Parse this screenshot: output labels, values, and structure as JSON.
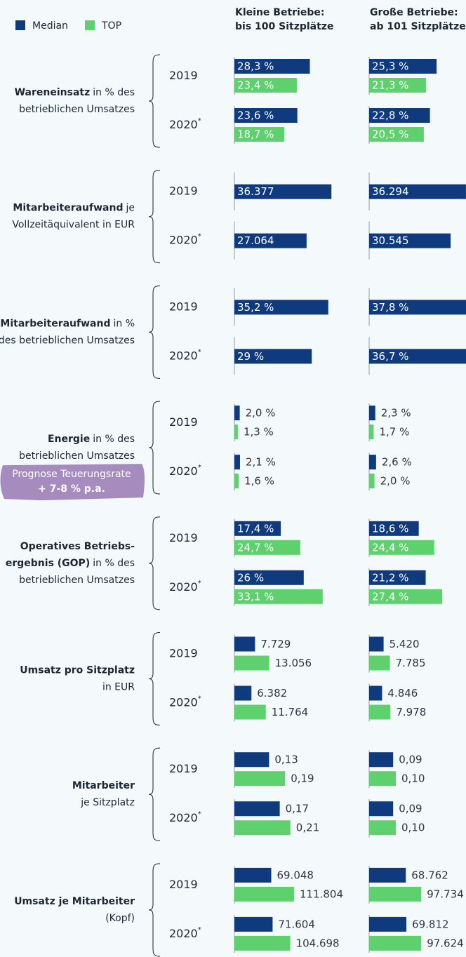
{
  "legend": [
    {
      "name": "Median",
      "color": "#0f3a7d"
    },
    {
      "name": "TOP",
      "color": "#5ed16e"
    }
  ],
  "columns": [
    {
      "title": [
        "Kleine Betriebe:",
        "bis 100 Sitzplätze"
      ]
    },
    {
      "title": [
        "Große Betriebe:",
        "ab 101 Sitzplätze"
      ]
    }
  ],
  "years": [
    {
      "label": "2019"
    },
    {
      "label": "2020",
      "note": "*"
    }
  ],
  "sections": [
    {
      "label": [
        [
          {
            "text": "Wareneinsatz",
            "bold": true
          },
          {
            "text": "in % des"
          }
        ],
        [
          {
            "text": "betrieblichen Umsatzes"
          }
        ]
      ],
      "xlim": [
        0,
        50
      ],
      "label_position": "inside",
      "groups": [
        {
          "series": [
            {
              "values": [
                28.3,
                23.6
              ],
              "value_labels": [
                "28,3 %",
                "23,6 %"
              ]
            },
            {
              "values": [
                23.4,
                18.7
              ],
              "value_labels": [
                "23,4 %",
                "18,7 %"
              ]
            }
          ]
        },
        {
          "series": [
            {
              "values": [
                25.3,
                22.8
              ],
              "value_labels": [
                "25,3 %",
                "22,8 %"
              ]
            },
            {
              "values": [
                21.3,
                20.5
              ],
              "value_labels": [
                "21,3 %",
                "20,5 %"
              ]
            }
          ]
        }
      ]
    },
    {
      "label": [
        [
          {
            "text": "Mitarbeiteraufwand",
            "bold": true
          },
          {
            "text": "je"
          }
        ],
        [
          {
            "text": "Vollzeitäquivalent in EUR"
          }
        ]
      ],
      "xlim": [
        0,
        50000
      ],
      "label_position": "inside",
      "groups": [
        {
          "series": [
            {
              "values": [
                36377,
                27064
              ],
              "value_labels": [
                "36.377",
                "27.064"
              ]
            }
          ]
        },
        {
          "series": [
            {
              "values": [
                36294,
                30545
              ],
              "value_labels": [
                "36.294",
                "30.545"
              ]
            }
          ]
        }
      ]
    },
    {
      "label": [
        [
          {
            "text": "Mitarbeiteraufwand",
            "bold": true
          },
          {
            "text": "in %"
          }
        ],
        [
          {
            "text": "des betrieblichen Umsatzes"
          }
        ]
      ],
      "xlim": [
        0,
        50
      ],
      "label_position": "inside",
      "groups": [
        {
          "series": [
            {
              "values": [
                35.2,
                29
              ],
              "value_labels": [
                "35,2 %",
                "29 %"
              ]
            }
          ]
        },
        {
          "series": [
            {
              "values": [
                37.8,
                36.7
              ],
              "value_labels": [
                "37,8 %",
                "36,7 %"
              ]
            }
          ]
        }
      ]
    },
    {
      "label": [
        [
          {
            "text": "Energie",
            "bold": true
          },
          {
            "text": "in % des"
          }
        ],
        [
          {
            "text": "betrieblichen Umsatzes"
          }
        ]
      ],
      "xlim": [
        0,
        50
      ],
      "label_position": "outside",
      "badge": [
        {
          "text": "Prognose Teuerungsrate"
        },
        {
          "text": "+ 7-8 % p.a.",
          "bold": true
        }
      ],
      "groups": [
        {
          "series": [
            {
              "values": [
                2.0,
                2.1
              ],
              "value_labels": [
                "2,0 %",
                "2,1 %"
              ]
            },
            {
              "values": [
                1.3,
                1.6
              ],
              "value_labels": [
                "1,3 %",
                "1,6 %"
              ]
            }
          ]
        },
        {
          "series": [
            {
              "values": [
                2.3,
                2.6
              ],
              "value_labels": [
                "2,3 %",
                "2,6 %"
              ]
            },
            {
              "values": [
                1.7,
                2.0
              ],
              "value_labels": [
                "1,7 %",
                "2,0 %"
              ]
            }
          ]
        }
      ]
    },
    {
      "label": [
        [
          {
            "text": "Operatives Betriebs-",
            "bold": true
          }
        ],
        [
          {
            "text": "ergebnis (GOP)",
            "bold": true
          },
          {
            "text": "in % des"
          }
        ],
        [
          {
            "text": "betrieblichen Umsatzes"
          }
        ]
      ],
      "xlim": [
        0,
        50
      ],
      "label_position": "inside",
      "groups": [
        {
          "series": [
            {
              "values": [
                17.4,
                26
              ],
              "value_labels": [
                "17,4 %",
                "26 %"
              ]
            },
            {
              "values": [
                24.7,
                33.1
              ],
              "value_labels": [
                "24,7 %",
                "33,1 %"
              ]
            }
          ]
        },
        {
          "series": [
            {
              "values": [
                18.6,
                21.2
              ],
              "value_labels": [
                "18,6 %",
                "21,2 %"
              ]
            },
            {
              "values": [
                24.4,
                27.4
              ],
              "value_labels": [
                "24,4 %",
                "27,4 %"
              ]
            }
          ]
        }
      ]
    },
    {
      "label": [
        [
          {
            "text": "Umsatz pro Sitzplatz",
            "bold": true
          }
        ],
        [
          {
            "text": "in EUR"
          }
        ]
      ],
      "xlim": [
        0,
        50000
      ],
      "label_position": "outside",
      "groups": [
        {
          "series": [
            {
              "values": [
                7729,
                6382
              ],
              "value_labels": [
                "7.729",
                "6.382"
              ]
            },
            {
              "values": [
                13056,
                11764
              ],
              "value_labels": [
                "13.056",
                "11.764"
              ]
            }
          ]
        },
        {
          "series": [
            {
              "values": [
                5420,
                4846
              ],
              "value_labels": [
                "5.420",
                "4.846"
              ]
            },
            {
              "values": [
                7785,
                7978
              ],
              "value_labels": [
                "7.785",
                "7.978"
              ]
            }
          ]
        }
      ]
    },
    {
      "label": [
        [
          {
            "text": "Mitarbeiter",
            "bold": true
          }
        ],
        [
          {
            "text": "je Sitzplatz"
          }
        ]
      ],
      "xlim": [
        0,
        0.5
      ],
      "label_position": "outside",
      "groups": [
        {
          "series": [
            {
              "values": [
                0.13,
                0.17
              ],
              "value_labels": [
                "0,13",
                "0,17"
              ]
            },
            {
              "values": [
                0.19,
                0.21
              ],
              "value_labels": [
                "0,19",
                "0,21"
              ]
            }
          ]
        },
        {
          "series": [
            {
              "values": [
                0.09,
                0.09
              ],
              "value_labels": [
                "0,09",
                "0,09"
              ]
            },
            {
              "values": [
                0.1,
                0.1
              ],
              "value_labels": [
                "0,10",
                "0,10"
              ]
            }
          ]
        }
      ]
    },
    {
      "label": [
        [
          {
            "text": "Umsatz je Mitarbeiter",
            "bold": true
          }
        ],
        [
          {
            "text": "(Kopf)"
          }
        ]
      ],
      "xlim": [
        0,
        250000
      ],
      "label_position": "outside",
      "groups": [
        {
          "series": [
            {
              "values": [
                69048,
                71604
              ],
              "value_labels": [
                "69.048",
                "71.604"
              ]
            },
            {
              "values": [
                111804,
                104698
              ],
              "value_labels": [
                "111.804",
                "104.698"
              ]
            }
          ]
        },
        {
          "series": [
            {
              "values": [
                68762,
                69812
              ],
              "value_labels": [
                "68.762",
                "69.812"
              ]
            },
            {
              "values": [
                97734,
                97624
              ],
              "value_labels": [
                "97.734",
                "97.624"
              ]
            }
          ]
        }
      ]
    }
  ]
}
